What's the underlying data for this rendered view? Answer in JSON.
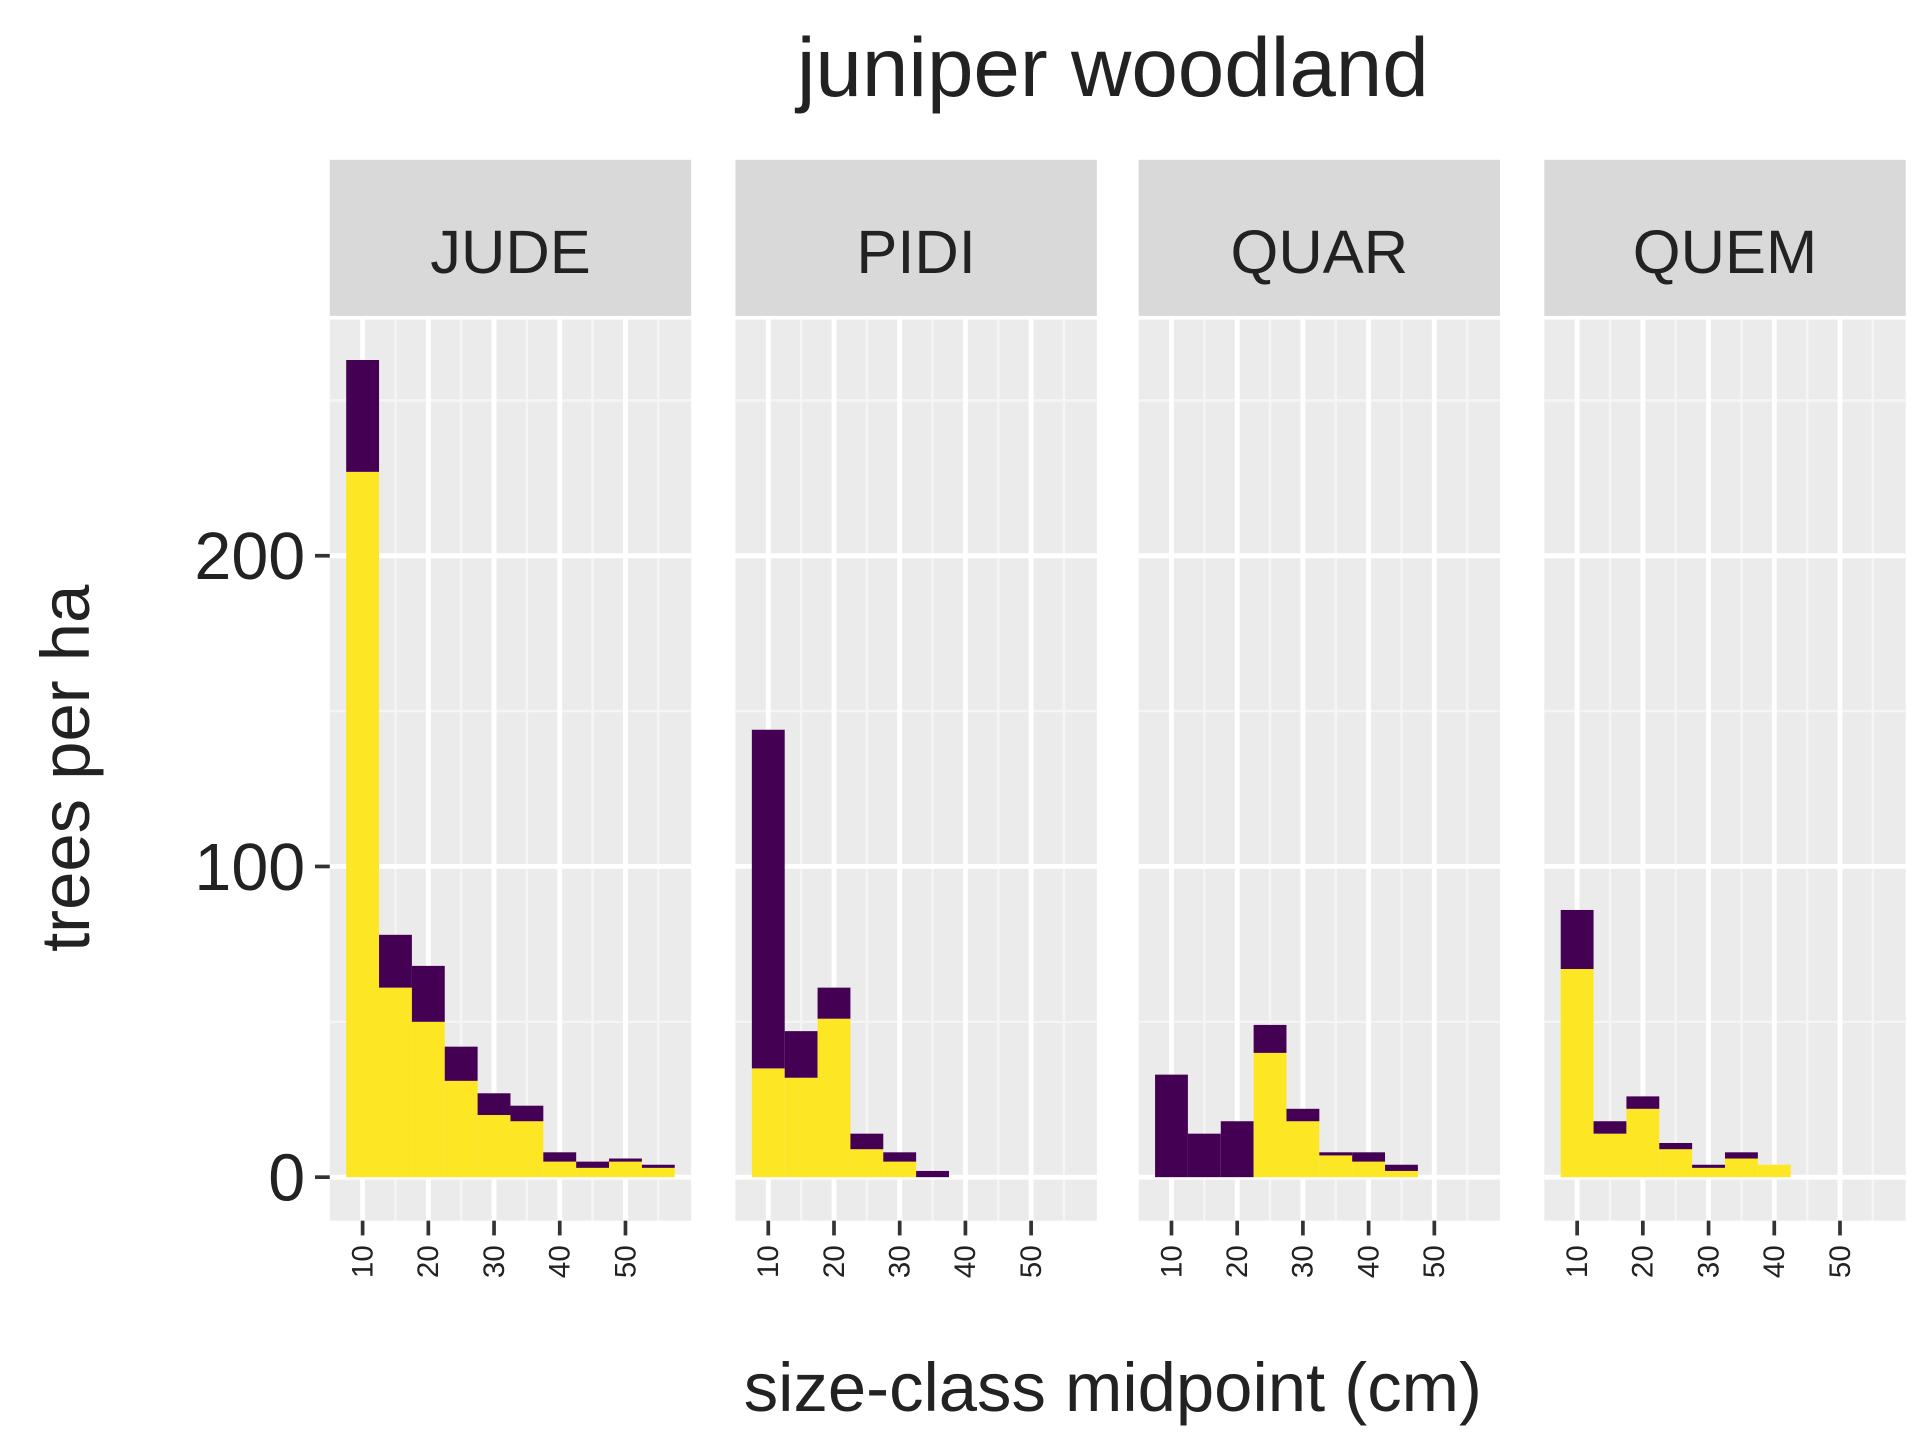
{
  "title": "juniper woodland",
  "x_label": "size-class midpoint (cm)",
  "y_label": "trees per ha",
  "chart_data": [
    {
      "type": "bar",
      "stacked": true,
      "facet": "JUDE",
      "x": [
        10,
        15,
        20,
        25,
        30,
        35,
        40,
        45,
        50,
        55
      ],
      "series": [
        {
          "color": "#fde725",
          "values": [
            227,
            61,
            50,
            31,
            20,
            18,
            5,
            3,
            5,
            3
          ]
        },
        {
          "color": "#440154",
          "values": [
            36,
            17,
            18,
            11,
            7,
            5,
            3,
            2,
            1,
            1
          ]
        }
      ],
      "xlim": [
        5,
        60
      ],
      "ylim": [
        -14,
        276
      ],
      "xticks": [
        10,
        20,
        30,
        40,
        50
      ],
      "yticks": [
        0,
        100,
        200
      ],
      "grid": true
    },
    {
      "type": "bar",
      "stacked": true,
      "facet": "PIDI",
      "x": [
        10,
        15,
        20,
        25,
        30,
        35,
        40,
        45,
        50,
        55
      ],
      "series": [
        {
          "color": "#fde725",
          "values": [
            35,
            32,
            51,
            9,
            5,
            0,
            0,
            0,
            0,
            0
          ]
        },
        {
          "color": "#440154",
          "values": [
            109,
            15,
            10,
            5,
            3,
            2,
            0,
            0,
            0,
            0
          ]
        }
      ],
      "xlim": [
        5,
        60
      ],
      "ylim": [
        -14,
        276
      ],
      "xticks": [
        10,
        20,
        30,
        40,
        50
      ],
      "yticks": [
        0,
        100,
        200
      ],
      "grid": true
    },
    {
      "type": "bar",
      "stacked": true,
      "facet": "QUAR",
      "x": [
        10,
        15,
        20,
        25,
        30,
        35,
        40,
        45,
        50,
        55
      ],
      "series": [
        {
          "color": "#fde725",
          "values": [
            0,
            0,
            0,
            40,
            18,
            7,
            5,
            2,
            0,
            0
          ]
        },
        {
          "color": "#440154",
          "values": [
            33,
            14,
            18,
            9,
            4,
            1,
            3,
            2,
            0,
            0
          ]
        }
      ],
      "xlim": [
        5,
        60
      ],
      "ylim": [
        -14,
        276
      ],
      "xticks": [
        10,
        20,
        30,
        40,
        50
      ],
      "yticks": [
        0,
        100,
        200
      ],
      "grid": true
    },
    {
      "type": "bar",
      "stacked": true,
      "facet": "QUEM",
      "x": [
        10,
        15,
        20,
        25,
        30,
        35,
        40,
        45,
        50,
        55
      ],
      "series": [
        {
          "color": "#fde725",
          "values": [
            67,
            14,
            22,
            9,
            3,
            6,
            4,
            0,
            0,
            0
          ]
        },
        {
          "color": "#440154",
          "values": [
            19,
            4,
            4,
            2,
            1,
            2,
            0,
            0,
            0,
            0
          ]
        }
      ],
      "xlim": [
        5,
        60
      ],
      "ylim": [
        -14,
        276
      ],
      "xticks": [
        10,
        20,
        30,
        40,
        50
      ],
      "yticks": [
        0,
        100,
        200
      ],
      "grid": true
    }
  ]
}
